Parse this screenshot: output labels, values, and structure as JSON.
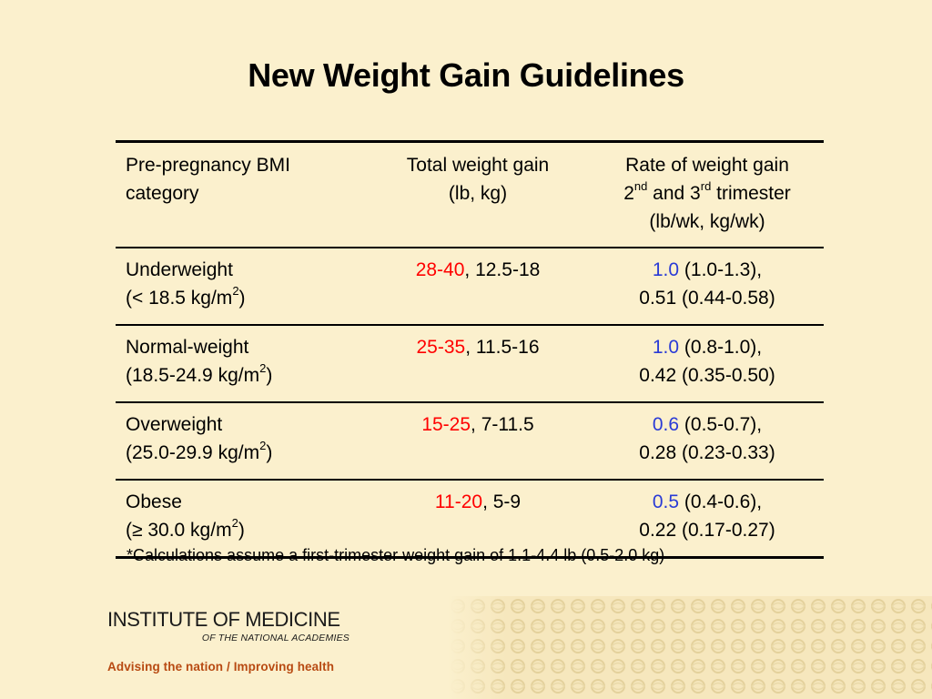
{
  "title": "New Weight Gain Guidelines",
  "table": {
    "headers": {
      "col1_line1": "Pre-pregnancy BMI",
      "col1_line2": "category",
      "col2_line1": "Total weight gain",
      "col2_line2": "(lb, kg)",
      "col3_line1": "Rate of weight gain",
      "col3_ord1_num": "2",
      "col3_ord1_sup": "nd",
      "col3_and": " and 3",
      "col3_ord2_sup": "rd",
      "col3_trimester": " trimester",
      "col3_line3": "(lb/wk, kg/wk)"
    },
    "rows": [
      {
        "category": "Underweight",
        "bmi_pre": "(< 18.5 kg/m",
        "bmi_sup": "2",
        "bmi_post": ")",
        "total_lb": "28-40",
        "total_kg": ", 12.5-18",
        "rate_lb": "1.0",
        "rate_lb_range": " (1.0-1.3),",
        "rate_kg": "0.51 (0.44-0.58)"
      },
      {
        "category": "Normal-weight",
        "bmi_pre": "(18.5-24.9 kg/m",
        "bmi_sup": "2",
        "bmi_post": ")",
        "total_lb": "25-35",
        "total_kg": ", 11.5-16",
        "rate_lb": "1.0",
        "rate_lb_range": " (0.8-1.0),",
        "rate_kg": "0.42 (0.35-0.50)"
      },
      {
        "category": "Overweight",
        "bmi_pre": "(25.0-29.9 kg/m",
        "bmi_sup": "2",
        "bmi_post": ")",
        "total_lb": "15-25",
        "total_kg": ", 7-11.5",
        "rate_lb": "0.6",
        "rate_lb_range": " (0.5-0.7),",
        "rate_kg": "0.28 (0.23-0.33)"
      },
      {
        "category": "Obese",
        "bmi_pre": "(≥ 30.0 kg/m",
        "bmi_sup": "2",
        "bmi_post": ")",
        "total_lb": "11-20",
        "total_kg": ", 5-9",
        "rate_lb": "0.5",
        "rate_lb_range": " (0.4-0.6),",
        "rate_kg": "0.22 (0.17-0.27)"
      }
    ]
  },
  "footnote": "*Calculations assume a first-trimester weight gain of 1.1-4.4 lb (0.5-2.0 kg)",
  "logo": {
    "main": "INSTITUTE OF MEDICINE",
    "sub": "OF THE NATIONAL ACADEMIES",
    "tagline": "Advising the nation / Improving health"
  },
  "colors": {
    "background": "#fbf0cd",
    "lb_total": "#ff0000",
    "lb_rate": "#2a3bd6",
    "tagline": "#b84a12"
  }
}
